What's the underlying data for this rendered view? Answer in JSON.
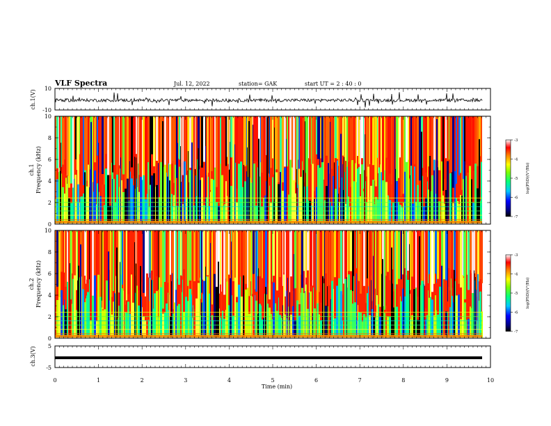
{
  "header": {
    "title": "VLF Spectra",
    "date": "Jul. 12, 2022",
    "station": "station= GAK",
    "start": "start UT = 2 : 40 : 0"
  },
  "chart_data": [
    {
      "type": "line",
      "ylabel": "ch.1(V)",
      "ylim": [
        -10,
        10
      ],
      "yticks": [
        "10",
        "-10"
      ],
      "xlim": [
        0,
        10
      ],
      "description": "waveform, noisy around -1 V"
    },
    {
      "type": "heatmap",
      "ylabel": "ch.1\nFrequency (kHz)",
      "ylim": [
        0,
        10
      ],
      "yticks": [
        "0",
        "2",
        "4",
        "6",
        "8",
        "10"
      ],
      "xlim": [
        0,
        10
      ],
      "colorbar": {
        "label": "log(PSD)(V²/Hz)",
        "range": [
          -7,
          -3
        ],
        "ticks": [
          "-3",
          "-4",
          "-5",
          "-6",
          "-7"
        ]
      }
    },
    {
      "type": "heatmap",
      "ylabel": "ch.2\nFrequency (kHz)",
      "ylim": [
        0,
        10
      ],
      "yticks": [
        "0",
        "2",
        "4",
        "6",
        "8",
        "10"
      ],
      "xlim": [
        0,
        10
      ],
      "colorbar": {
        "label": "log(PSD)(V²/Hz)",
        "range": [
          -7,
          -3
        ],
        "ticks": [
          "-3",
          "-4",
          "-5",
          "-6",
          "-7"
        ]
      }
    },
    {
      "type": "line",
      "ylabel": "ch.3(V)",
      "ylim": [
        -5,
        5
      ],
      "yticks": [
        "5",
        "-5"
      ],
      "xlim": [
        0,
        10
      ],
      "value": -0.5
    }
  ],
  "xaxis": {
    "label": "Time (min)",
    "ticks": [
      "0",
      "1",
      "2",
      "3",
      "4",
      "5",
      "6",
      "7",
      "8",
      "9",
      "10"
    ]
  },
  "labels": {
    "ch1v": "ch.1(V)",
    "ch1": "ch.1",
    "ch2v": "ch.2",
    "freq": "Frequency (kHz)",
    "ch3v": "ch.3(V)",
    "cbar": "log(PSD)(V²/Hz)"
  }
}
